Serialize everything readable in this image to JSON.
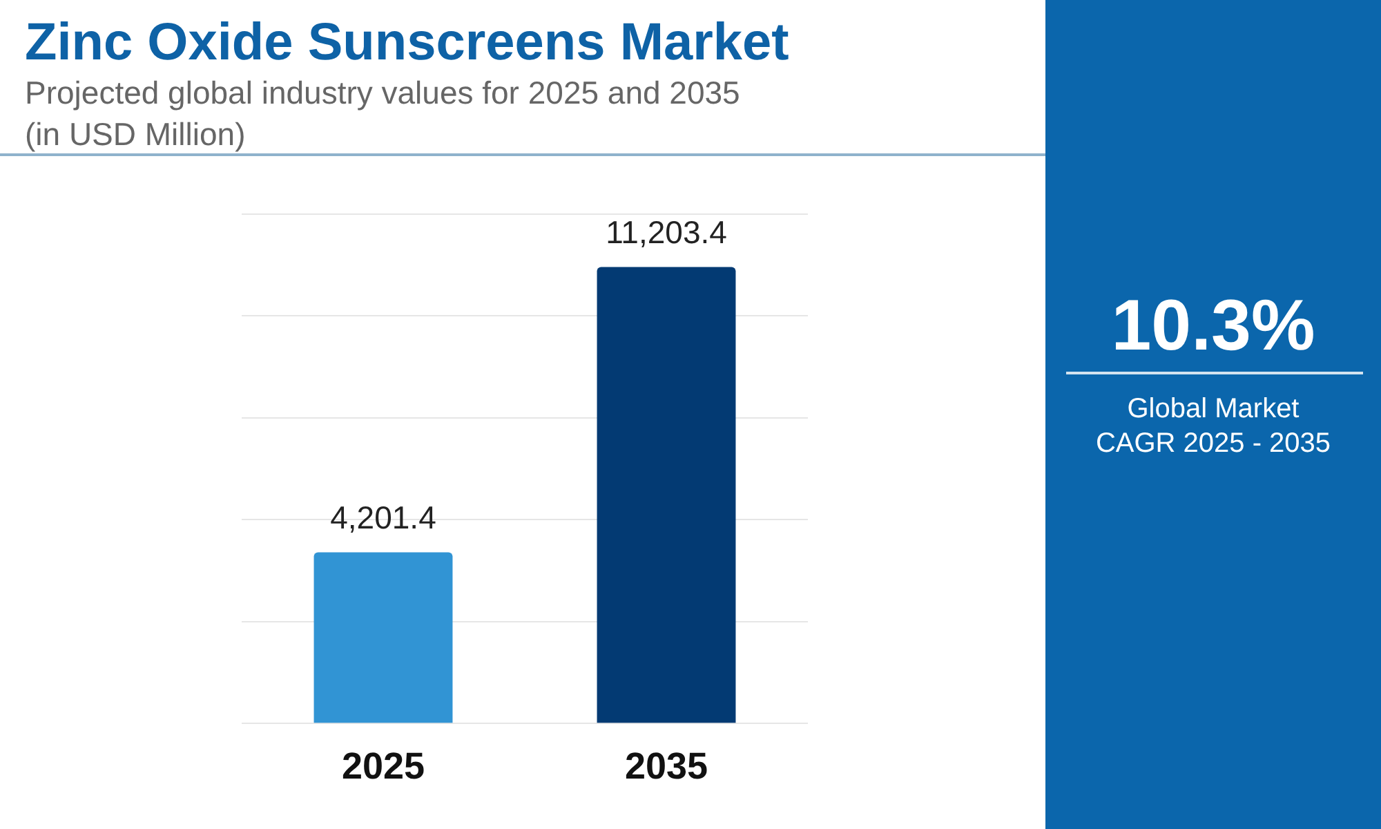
{
  "chart_data": {
    "type": "bar",
    "title": "Zinc Oxide Sunscreens Market",
    "subtitle": "Projected global industry values for 2025 and 2035 (in USD Million)",
    "categories": [
      "2025",
      "2035"
    ],
    "values": [
      4201.4,
      11203.4
    ],
    "colors": [
      "#3194d4",
      "#033a73"
    ],
    "value_labels": [
      "4,201.4",
      "11,203.4"
    ],
    "ylim": [
      0,
      12500
    ],
    "yticks": [
      {
        "value": 0,
        "label": null
      },
      {
        "value": 2500,
        "label": null
      },
      {
        "value": 5000,
        "label": null
      },
      {
        "value": 7500,
        "label": null
      },
      {
        "value": 10000,
        "label": null
      },
      {
        "value": 12500,
        "label": null
      }
    ],
    "grid": "y",
    "tick_labels": "x",
    "annotations": [
      "10.3%",
      "Global Market",
      "CAGR 2025 - 2035"
    ]
  }
}
